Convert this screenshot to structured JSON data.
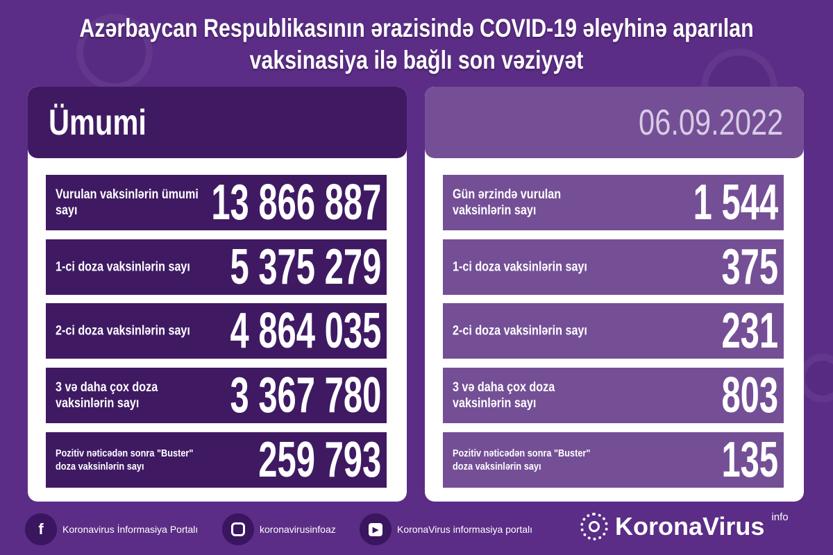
{
  "title": {
    "line1": "Azərbaycan Respublikasının ərazisində COVID-19 əleyhinə aparılan",
    "line2": "vaksinasiya ilə bağlı son vəziyyət"
  },
  "left": {
    "header": "Ümumi",
    "rows": [
      {
        "label": "Vurulan vaksinlərin ümumi sayı",
        "value": "13 866 887"
      },
      {
        "label": "1-ci doza vaksinlərin sayı",
        "value": "5 375 279"
      },
      {
        "label": "2-ci doza vaksinlərin sayı",
        "value": "4 864 035"
      },
      {
        "label": "3 və daha çox doza vaksinlərin sayı",
        "value": "3 367 780"
      },
      {
        "label": "Pozitiv nəticədən sonra \"Buster\" doza vaksinlərin sayı",
        "value": "259 793"
      }
    ]
  },
  "right": {
    "date": "06.09.2022",
    "rows": [
      {
        "label": "Gün ərzində vurulan vaksinlərin sayı",
        "value": "1 544"
      },
      {
        "label": "1-ci doza vaksinlərin sayı",
        "value": "375"
      },
      {
        "label": "2-ci doza vaksinlərin sayı",
        "value": "231"
      },
      {
        "label": "3 və daha çox doza vaksinlərin sayı",
        "value": "803"
      },
      {
        "label": "Pozitiv nəticədən sonra \"Buster\" doza vaksinlərin sayı",
        "value": "135"
      }
    ]
  },
  "footer": {
    "facebook": "Koronavirus İnformasiya Portalı",
    "instagram": "koronavirusinfoaz",
    "youtube": "KoronaVirus informasiya portalı",
    "brand": "KoronaVirus",
    "brand_sup": "info"
  },
  "colors": {
    "background": "#5b2d86",
    "dark_row": "#3f1a63",
    "light_row": "#744f96",
    "date": "#d8cce6"
  }
}
